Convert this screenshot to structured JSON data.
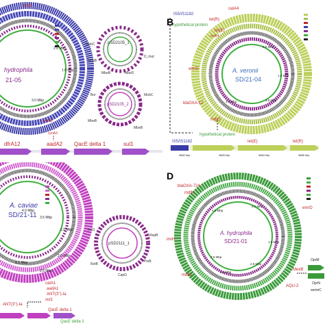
{
  "panels": {
    "A": {
      "label": "",
      "genome_name_italic": "hydrophila",
      "genome_id": "21-05",
      "top_gene": "crpE",
      "bottom_gene": "emrB",
      "ring_labels": [
        "1.0 Mbp",
        "2.0 Mbp",
        "3.0 Mbp",
        "2.5 Mbp",
        "4.5 Mbp"
      ],
      "plasmid1": {
        "name": "pSD2105_1",
        "genes": [
          "MobC",
          "MobB",
          "MbeB",
          "MbeD",
          "D_mut"
        ]
      },
      "plasmid2": {
        "name": "pSD2105_2",
        "genes": [
          "Bor",
          "MobC",
          "MbeB",
          "MbeB"
        ]
      },
      "cassette_genes": [
        "dfrA12",
        "aadA2",
        "QacE delta 1",
        "sul1"
      ],
      "cassette_mid_gene": "cynA3"
    },
    "B": {
      "label": "B",
      "species": "A. veronii",
      "strain": "SD/21-04",
      "genes": [
        "IS5/IS1182",
        "tet(R)",
        "hypothetical protein",
        "tet(E)",
        "mdtH",
        "catA4",
        "emrD",
        "blaOXA-12",
        "mdtO"
      ],
      "ring_labels": [
        "0.5 Mbp",
        "1.0 Mbp",
        "1.5 Mbp",
        "2.0 Mbp",
        "2.5 Mbp",
        "3.0 Mbp",
        "3.5 Mbp",
        "4.0 Mbp"
      ],
      "zoom_genes": [
        "IS5/IS1182",
        "hypothetical protein",
        "tet(E)",
        "tet(R)"
      ],
      "zoom_ticks": [
        "3882 kbp",
        "3883 kbp",
        "3884 kbp",
        "3885 kbp"
      ]
    },
    "C": {
      "label": "",
      "species": "A. caviae",
      "strain": "SD/21-11",
      "ring_labels": [
        "4.0 Mbp",
        "3.5 Mbp",
        "1.0 Mbp",
        "1.5 Mbp",
        "2.0 Mbp",
        "2.5 Mbp"
      ],
      "genes": [
        "catA1",
        "aadA1",
        "ANT(3'')-Ia",
        "sul1",
        "QacE delta 1",
        "ANT(3'')-Ia",
        "QacE delta 1"
      ],
      "plasmid": {
        "name": "pSD2111_1",
        "genes": [
          "IncI1",
          "RepB",
          "PinB",
          "CapG",
          "RelB"
        ]
      }
    },
    "D": {
      "label": "D",
      "species": "A. hydrophila",
      "strain": "SD/21-01",
      "genes": [
        "blaOXA-724",
        "mdtH",
        "imiH",
        "mdtO",
        "emrD",
        "MexB",
        "AQU-2"
      ],
      "ring_labels": [
        "0.5 Mbp",
        "1.0 Mbp",
        "1.5 Mbp",
        "2.0 Mbp",
        "2.5 Mbp",
        "3.0 Mbp",
        "3.5 Mbp",
        "4.0 Mbp",
        "4.5 Mbp"
      ],
      "side_genes": [
        "OprM",
        "OprN",
        "semeC"
      ]
    }
  },
  "colors": {
    "blue_ring": "#3a3aa8",
    "green_ring": "#bcd05a",
    "magenta_ring": "#c040c0",
    "dark_green_ring": "#3a9a3a",
    "gene_red": "#c0262c",
    "cassette_arrow": "#a050c8",
    "gc_skew_purple": "#8a2a8a",
    "gc_skew_green": "#3fae3f"
  }
}
